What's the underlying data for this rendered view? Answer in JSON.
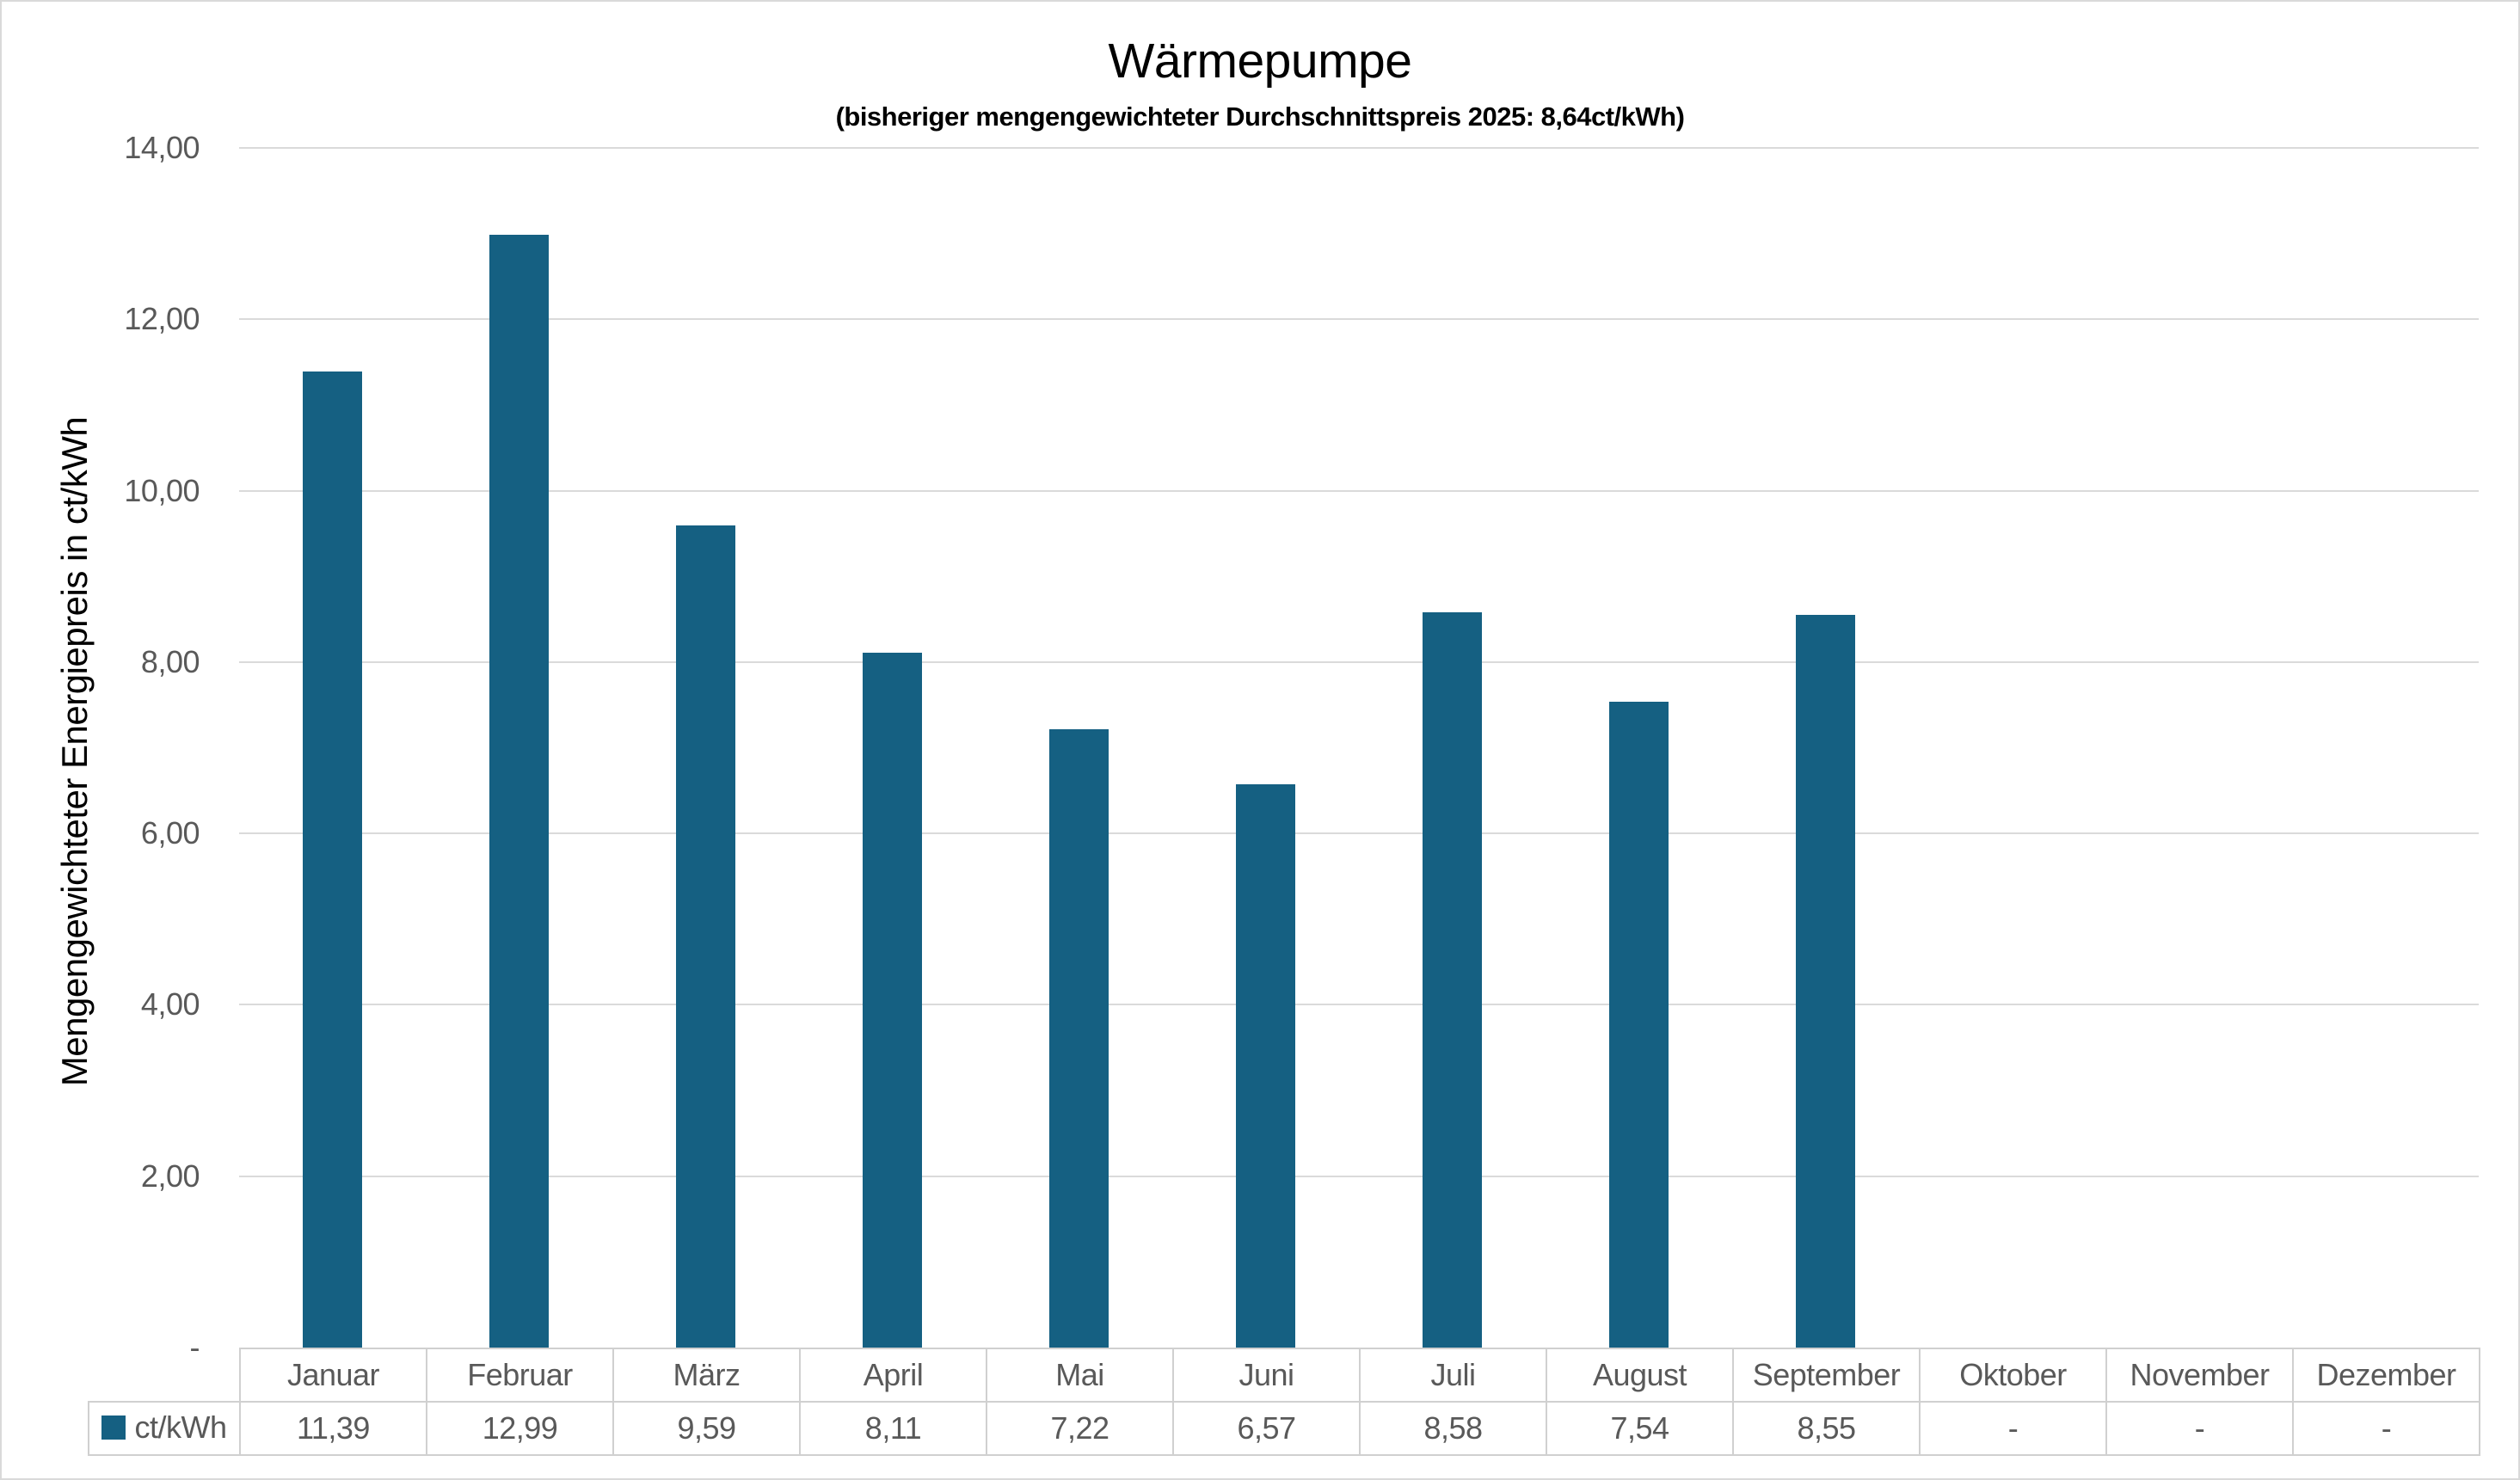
{
  "chart_data": {
    "type": "bar",
    "title": "Wärmepumpe",
    "subtitle": "(bisheriger mengengewichteter Durchschnittspreis 2025: 8,64ct/kWh)",
    "ylabel": "Mengengewichteter Energiepreis in ct/kWh",
    "xlabel": "",
    "categories": [
      "Januar",
      "Februar",
      "März",
      "April",
      "Mai",
      "Juni",
      "Juli",
      "August",
      "September",
      "Oktober",
      "November",
      "Dezember"
    ],
    "series": [
      {
        "name": "ct/kWh",
        "values": [
          11.39,
          12.99,
          9.59,
          8.11,
          7.22,
          6.57,
          8.58,
          7.54,
          8.55,
          null,
          null,
          null
        ],
        "display": [
          "11,39",
          "12,99",
          "9,59",
          "8,11",
          "7,22",
          "6,57",
          "8,58",
          "7,54",
          "8,55",
          "-",
          "-",
          "-"
        ],
        "color": "#156082"
      }
    ],
    "ylim": [
      0,
      14
    ],
    "y_ticks": [
      {
        "value": 14,
        "label": "14,00"
      },
      {
        "value": 12,
        "label": "12,00"
      },
      {
        "value": 10,
        "label": "10,00"
      },
      {
        "value": 8,
        "label": "8,00"
      },
      {
        "value": 6,
        "label": "6,00"
      },
      {
        "value": 4,
        "label": "4,00"
      },
      {
        "value": 2,
        "label": "2,00"
      },
      {
        "value": 0,
        "label": "-"
      }
    ],
    "grid": true,
    "legend_position": "data-table-left"
  },
  "colors": {
    "bar": "#156082",
    "gridline": "#DADADA",
    "table_border": "#D0D0D0",
    "tick_text": "#595959",
    "title_text": "#000000",
    "page_border": "#D9D9D9"
  }
}
